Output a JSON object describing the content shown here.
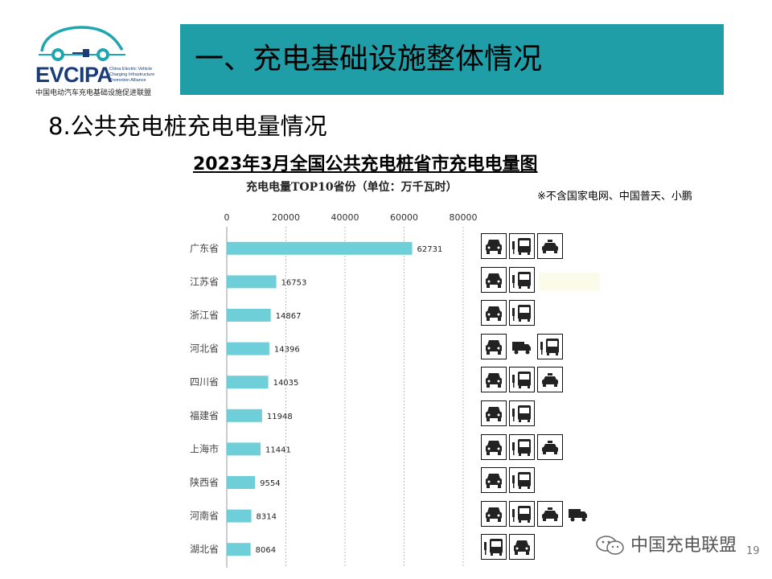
{
  "logo": {
    "name": "EVCIPA",
    "english": "China Electric Vehicle Charging Infrastructure Promotion Alliance",
    "chinese": "中国电动汽车充电基础设施促进联盟"
  },
  "banner": {
    "title": "一、充电基础设施整体情况",
    "color": "#1f9ea7"
  },
  "section_title": "8.公共充电桩充电电量情况",
  "note": "※不含国家电网、中国普天、小鹏",
  "watermark": "中国充电联盟",
  "page_number": "19",
  "icon_rows": [
    [
      "car-icon",
      "bus-icon",
      "taxi-icon"
    ],
    [
      "car-icon",
      "bus-icon"
    ],
    [
      "car-icon",
      "bus-icon"
    ],
    [
      "car-icon",
      "truck-icon",
      "bus-icon"
    ],
    [
      "car-icon",
      "bus-icon",
      "taxi-icon"
    ],
    [
      "car-icon",
      "bus-icon"
    ],
    [
      "car-icon",
      "bus-icon",
      "taxi-icon"
    ],
    [
      "car-icon",
      "bus-icon"
    ],
    [
      "car-icon",
      "bus-icon",
      "taxi-icon",
      "truck-icon"
    ],
    [
      "bus-icon",
      "car-icon"
    ]
  ],
  "chart_data": {
    "type": "bar",
    "orientation": "horizontal",
    "title": "2023年3月全国公共充电桩省市充电电量图",
    "subtitle": "充电电量TOP10省份（单位：万千瓦时）",
    "categories": [
      "广东省",
      "江苏省",
      "浙江省",
      "河北省",
      "四川省",
      "福建省",
      "上海市",
      "陕西省",
      "河南省",
      "湖北省"
    ],
    "values": [
      62731,
      16753,
      14867,
      14396,
      14035,
      11948,
      11441,
      9554,
      8314,
      8064
    ],
    "value_labels": [
      "62731",
      "16753",
      "14867",
      "14396",
      "14035",
      "11948",
      "11441",
      "9554",
      "8314",
      "8064"
    ],
    "xlim": [
      0,
      80000
    ],
    "xticks": [
      0,
      20000,
      40000,
      60000,
      80000
    ],
    "xtick_labels": [
      "0",
      "20000",
      "40000",
      "60000",
      "80000"
    ],
    "grid": true,
    "axis_position": "top",
    "bar_color": "#6fcfd8"
  }
}
